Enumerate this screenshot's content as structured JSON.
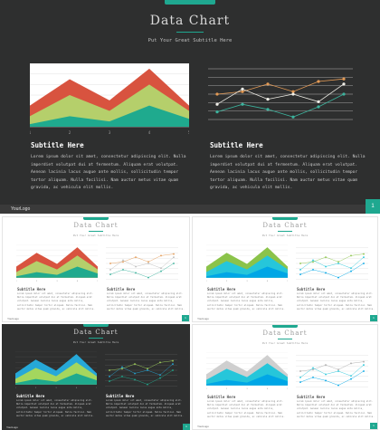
{
  "slide": {
    "title": "Data Chart",
    "subtitle": "Put Your Great Subtitle Here",
    "left_column": {
      "title": "Subtitle Here",
      "body": "Lorem ipsum dolor sit amet, consectetur adipiscing elit. Nulla imperdiet volutpat dui at fermentum. Aliquam erat volutpat. Aenean lacinia lacus augue ante mollis, sollicitudin tempor tortor aliquam. Nulla facilisi. Nam auctor metus vitae quam gravida, ac vehicula elit mollis."
    },
    "right_column": {
      "title": "Subtitle Here",
      "body": "Lorem ipsum dolor sit amet, consectetur adipiscing elit. Nulla imperdiet volutpat dui at fermentum. Aliquam erat volutpat. Aenean lacinia lacus augue ante mollis, sollicitudin tempor tortor aliquam. Nulla facilisi. Nam auctor metus vitae quam gravida, ac vehicula elit mollis."
    },
    "footer": {
      "logo": "YourLogo",
      "page_number": "1"
    }
  },
  "colors": {
    "accent": "#1fa890",
    "dark_bg": "#2e2f2f"
  },
  "chart_data": [
    {
      "type": "area",
      "x": [
        "1",
        "2",
        "3",
        "4",
        "5"
      ],
      "ylim": [
        0,
        12
      ],
      "series": [
        {
          "values": [
            4,
            9,
            5,
            11,
            4
          ],
          "color": "#d8533f"
        },
        {
          "values": [
            2,
            6,
            3,
            8,
            3
          ],
          "color": "#b5cf6b"
        },
        {
          "values": [
            0.5,
            2,
            1,
            4,
            1.5
          ],
          "color": "#1faa8e"
        }
      ],
      "grid": true
    },
    {
      "type": "line",
      "x": [
        "1",
        "2",
        "3",
        "4",
        "5",
        "6"
      ],
      "ylim": [
        0,
        10
      ],
      "series": [
        {
          "values": [
            5,
            5.5,
            7,
            5.5,
            7.5,
            8
          ],
          "color": "#e39a55"
        },
        {
          "values": [
            3,
            6,
            4,
            5,
            3.5,
            7
          ],
          "color": "#f0efe8"
        },
        {
          "values": [
            1.5,
            3,
            2,
            0.5,
            2.5,
            5
          ],
          "color": "#3cb39d"
        }
      ],
      "grid": true
    }
  ],
  "thumbnails": [
    {
      "theme": "light",
      "area_colors": [
        "#d8533f",
        "#b5cf6b",
        "#1faa8e"
      ],
      "line_colors": [
        "#e39a55",
        "#bbbbbb",
        "#3cb39d"
      ],
      "grid_color": "#dddddd",
      "area_bg": "#ffffff"
    },
    {
      "theme": "light",
      "area_colors": [
        "#8bc34a",
        "#26c6da",
        "#00a6e6"
      ],
      "line_colors": [
        "#8bc34a",
        "#26c6da",
        "#00a6e6"
      ],
      "grid_color": "#dddddd",
      "area_bg": "#ffffff"
    },
    {
      "theme": "dark",
      "area_colors": [
        "#26a8d8",
        "#a4d65e",
        "#1faa8e"
      ],
      "line_colors": [
        "#a4d65e",
        "#26a8d8",
        "#1faa8e"
      ],
      "grid_color": "#555555",
      "area_bg": "#2e2f2f"
    },
    {
      "theme": "light",
      "area_colors": [
        "#cfcfcf",
        "#26c6da",
        "#00a6e6"
      ],
      "line_colors": [
        "#aaaaaa",
        "#26c6da",
        "#00a6e6"
      ],
      "grid_color": "#dddddd",
      "area_bg": "#ffffff"
    }
  ]
}
